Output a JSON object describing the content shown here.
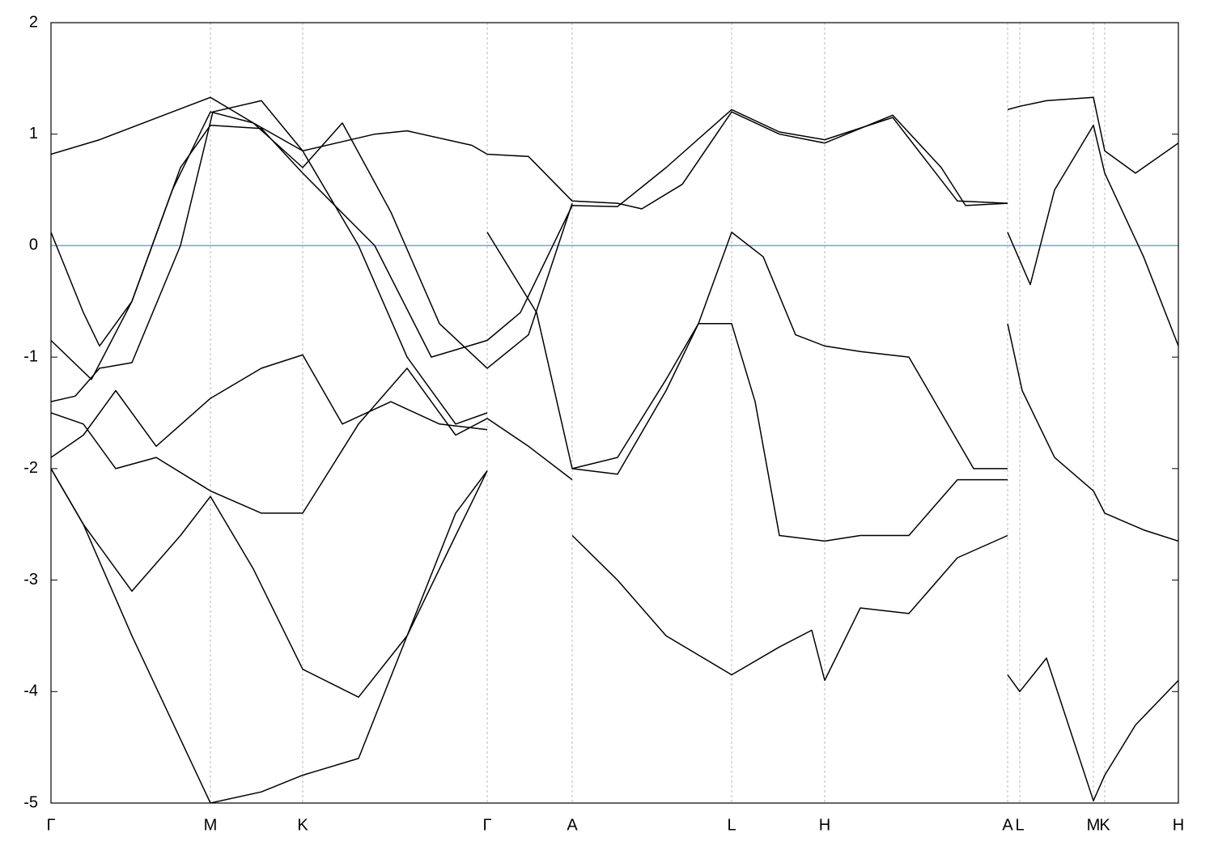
{
  "chart_data": {
    "type": "line",
    "xlim": [
      0,
      1393
    ],
    "ylim": [
      -5,
      2
    ],
    "yticks": [
      -5,
      -4,
      -3,
      -2,
      -1,
      0,
      1,
      2
    ],
    "xticks": [
      {
        "value": 0,
        "label": "Γ"
      },
      {
        "value": 197,
        "label": "M"
      },
      {
        "value": 311,
        "label": "K"
      },
      {
        "value": 539,
        "label": "Γ"
      },
      {
        "value": 644,
        "label": "A"
      },
      {
        "value": 841,
        "label": "L"
      },
      {
        "value": 956,
        "label": "H"
      },
      {
        "value": 1182,
        "label": "A"
      },
      {
        "value": 1197,
        "label": "L"
      },
      {
        "value": 1288,
        "label": "M"
      },
      {
        "value": 1302,
        "label": "K"
      },
      {
        "value": 1393,
        "label": "H"
      }
    ],
    "grid": true,
    "fermi_level": 0,
    "fermi_color": "#5ab4c8",
    "series": [
      {
        "color": "#000000",
        "x": [
          0,
          60,
          150,
          197,
          250,
          311,
          400,
          440,
          520,
          539,
          590,
          644,
          700,
          730,
          780,
          841,
          900,
          956,
          1040,
          1100,
          1130,
          1182
        ],
        "values": [
          0.82,
          0.95,
          1.2,
          1.33,
          1.1,
          0.85,
          1.0,
          1.03,
          0.9,
          0.82,
          0.8,
          0.4,
          0.38,
          0.33,
          0.55,
          1.2,
          1.0,
          0.92,
          1.17,
          0.7,
          0.36,
          0.38
        ]
      },
      {
        "color": "#000000",
        "x": [
          0,
          40,
          60,
          100,
          150,
          197,
          250,
          311,
          360,
          420,
          480,
          539,
          590,
          644
        ],
        "values": [
          0.12,
          -0.6,
          -0.9,
          -0.5,
          0.5,
          1.2,
          1.1,
          0.7,
          1.1,
          0.3,
          -0.7,
          -1.1,
          -0.8,
          0.38
        ]
      },
      {
        "color": "#000000",
        "x": [
          0,
          50,
          100,
          160,
          197,
          260,
          311,
          400,
          470,
          539,
          580,
          644,
          700,
          760,
          841,
          900,
          956,
          1040,
          1120,
          1182
        ],
        "values": [
          -0.85,
          -1.2,
          -0.5,
          0.7,
          1.08,
          1.05,
          0.65,
          0,
          -1.0,
          -0.85,
          -0.6,
          0.36,
          0.35,
          0.7,
          1.22,
          1.02,
          0.95,
          1.15,
          0.4,
          0.38
        ]
      },
      {
        "color": "#000000",
        "x": [
          0,
          30,
          60,
          100,
          160,
          200,
          260,
          311,
          380,
          440,
          500,
          539
        ],
        "values": [
          -1.4,
          -1.35,
          -1.1,
          -1.05,
          0,
          1.2,
          1.3,
          0.85,
          0,
          -1.0,
          -1.6,
          -1.5
        ]
      },
      {
        "color": "#000000",
        "x": [
          539,
          600,
          644,
          700,
          760,
          800,
          841,
          870,
          900,
          956,
          1000,
          1060,
          1120,
          1182
        ],
        "values": [
          0.12,
          -0.6,
          -2.0,
          -2.05,
          -1.3,
          -0.7,
          -0.7,
          -1.4,
          -2.6,
          -2.65,
          -2.6,
          -2.6,
          -2.1,
          -2.1
        ]
      },
      {
        "color": "#000000",
        "x": [
          644,
          700,
          760,
          800,
          841,
          880,
          920,
          956,
          1000,
          1060,
          1100,
          1140,
          1182
        ],
        "values": [
          -2.0,
          -1.9,
          -1.2,
          -0.7,
          0.12,
          -0.1,
          -0.8,
          -0.9,
          -0.95,
          -1.0,
          -1.5,
          -2.0,
          -2.0
        ]
      },
      {
        "color": "#000000",
        "x": [
          644,
          700,
          760,
          841,
          900,
          940,
          956,
          1000,
          1060,
          1120,
          1182
        ],
        "values": [
          -2.6,
          -3.0,
          -3.5,
          -3.85,
          -3.6,
          -3.45,
          -3.9,
          -3.25,
          -3.3,
          -2.8,
          -2.6
        ]
      },
      {
        "color": "#000000",
        "x": [
          0,
          40,
          100,
          160,
          197,
          250,
          311,
          380,
          440,
          500,
          539
        ],
        "values": [
          -2.0,
          -2.5,
          -3.1,
          -2.6,
          -2.25,
          -2.9,
          -3.8,
          -4.05,
          -3.5,
          -2.6,
          -2.02
        ]
      },
      {
        "color": "#000000",
        "x": [
          0,
          40,
          80,
          130,
          197,
          260,
          311,
          360,
          420,
          480,
          539
        ],
        "values": [
          -1.9,
          -1.7,
          -1.3,
          -1.8,
          -1.37,
          -1.1,
          -0.98,
          -1.6,
          -1.4,
          -1.6,
          -1.65
        ]
      },
      {
        "color": "#000000",
        "x": [
          0,
          40,
          80,
          130,
          197,
          260,
          311,
          380,
          440,
          500,
          539,
          590,
          644
        ],
        "values": [
          -1.5,
          -1.6,
          -2.0,
          -1.9,
          -2.2,
          -2.4,
          -2.4,
          -1.6,
          -1.1,
          -1.7,
          -1.55,
          -1.8,
          -2.1
        ]
      },
      {
        "color": "#000000",
        "x": [
          0,
          40,
          100,
          197,
          260,
          311,
          380,
          440,
          500,
          539
        ],
        "values": [
          -2.0,
          -2.5,
          -3.5,
          -5.0,
          -4.9,
          -4.75,
          -4.6,
          -3.5,
          -2.4,
          -2.02
        ]
      },
      {
        "color": "#000000",
        "x": [
          1182,
          1197,
          1230,
          1288,
          1302,
          1340,
          1393
        ],
        "values": [
          -3.85,
          -4.0,
          -3.7,
          -4.98,
          -4.75,
          -4.3,
          -3.9
        ]
      },
      {
        "color": "#000000",
        "x": [
          1182,
          1197,
          1230,
          1288,
          1302,
          1340,
          1393
        ],
        "values": [
          1.22,
          1.25,
          1.3,
          1.33,
          0.85,
          0.65,
          0.92
        ]
      },
      {
        "color": "#000000",
        "x": [
          1182,
          1210,
          1240,
          1288,
          1302,
          1350,
          1393
        ],
        "values": [
          0.12,
          -0.35,
          0.5,
          1.08,
          0.65,
          -0.1,
          -0.9
        ]
      },
      {
        "color": "#000000",
        "x": [
          1182,
          1200,
          1240,
          1288,
          1302,
          1350,
          1393
        ],
        "values": [
          -0.7,
          -1.3,
          -1.9,
          -2.2,
          -2.4,
          -2.55,
          -2.65
        ]
      }
    ]
  }
}
